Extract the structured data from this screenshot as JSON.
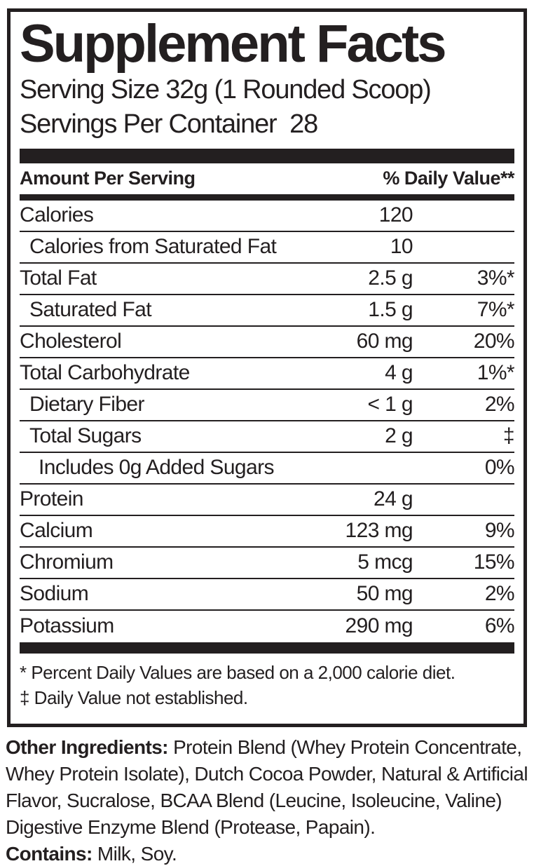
{
  "label": {
    "title": "Supplement Facts",
    "serving_size": "Serving Size 32g (1 Rounded Scoop)",
    "servings_per_container": "Servings Per Container  28",
    "header": {
      "left": "Amount Per Serving",
      "right": "% Daily Value**"
    },
    "rows": [
      {
        "name": "Calories",
        "amount": "120",
        "dv": "",
        "indent": 0
      },
      {
        "name": "Calories from Saturated Fat",
        "amount": "10",
        "dv": "",
        "indent": 1
      },
      {
        "name": "Total Fat",
        "amount": "2.5 g",
        "dv": "3%*",
        "indent": 0
      },
      {
        "name": "Saturated Fat",
        "amount": "1.5 g",
        "dv": "7%*",
        "indent": 1
      },
      {
        "name": "Cholesterol",
        "amount": "60 mg",
        "dv": "20%",
        "indent": 0
      },
      {
        "name": "Total Carbohydrate",
        "amount": "4 g",
        "dv": "1%*",
        "indent": 0
      },
      {
        "name": "Dietary Fiber",
        "amount": "< 1 g",
        "dv": "2%",
        "indent": 1
      },
      {
        "name": "Total Sugars",
        "amount": "2 g",
        "dv": "‡",
        "indent": 1
      },
      {
        "name": "Includes 0g Added Sugars",
        "amount": "",
        "dv": "0%",
        "indent": 2
      },
      {
        "name": "Protein",
        "amount": "24 g",
        "dv": "",
        "indent": 0
      },
      {
        "name": "Calcium",
        "amount": "123 mg",
        "dv": "9%",
        "indent": 0
      },
      {
        "name": "Chromium",
        "amount": "5 mcg",
        "dv": "15%",
        "indent": 0
      },
      {
        "name": "Sodium",
        "amount": "50 mg",
        "dv": "2%",
        "indent": 0
      },
      {
        "name": "Potassium",
        "amount": "290 mg",
        "dv": "6%",
        "indent": 0
      }
    ],
    "footnotes": [
      "* Percent Daily Values are based on a 2,000 calorie diet.",
      "‡ Daily Value not established."
    ],
    "other_ingredients_label": "Other Ingredients:",
    "other_ingredients_text": " Protein Blend (Whey Protein Concentrate, Whey Protein Isolate), Dutch Cocoa Powder, Natural & Artificial Flavor, Sucralose, BCAA Blend (Leucine, Isoleucine, Valine) Digestive Enzyme Blend (Protease, Papain).",
    "contains_label": "Contains:",
    "contains_text": " Milk, Soy.",
    "colors": {
      "ink": "#231f20",
      "background": "#ffffff"
    }
  }
}
